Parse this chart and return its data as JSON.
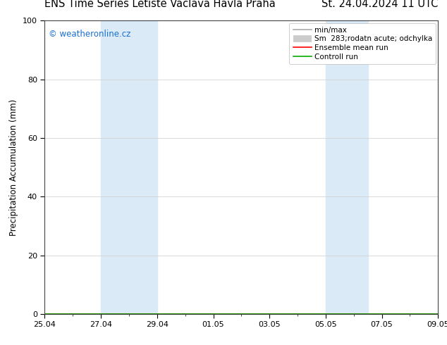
{
  "title_left": "ENS Time Series Letiště Václava Havla Praha",
  "title_right": "St. 24.04.2024 11 UTC",
  "ylabel": "Precipitation Accumulation (mm)",
  "ylim": [
    0,
    100
  ],
  "yticks": [
    0,
    20,
    40,
    60,
    80,
    100
  ],
  "x_start_day": 0,
  "x_end_day": 14,
  "xtick_labels": [
    "25.04",
    "27.04",
    "29.04",
    "01.05",
    "03.05",
    "05.05",
    "07.05",
    "09.05"
  ],
  "xtick_positions_days": [
    0,
    2,
    4,
    6,
    8,
    10,
    12,
    14
  ],
  "shaded_bands": [
    {
      "x_start_day": 2.0,
      "x_end_day": 4.0
    },
    {
      "x_start_day": 10.0,
      "x_end_day": 11.5
    }
  ],
  "shade_color": "#daeaf7",
  "watermark_text": "© weatheronline.cz",
  "watermark_color": "#1a6fcf",
  "legend_entries": [
    {
      "label": "min/max",
      "color": "#aaaaaa",
      "linewidth": 1.2
    },
    {
      "label": "Sm  283;rodatn acute; odchylka",
      "color": "#cccccc",
      "linewidth": 7
    },
    {
      "label": "Ensemble mean run",
      "color": "#ff0000",
      "linewidth": 1.2
    },
    {
      "label": "Controll run",
      "color": "#00aa00",
      "linewidth": 1.2
    }
  ],
  "background_color": "#ffffff",
  "grid_color": "#cccccc",
  "title_fontsize": 10.5,
  "ylabel_fontsize": 8.5,
  "tick_fontsize": 8,
  "watermark_fontsize": 8.5,
  "legend_fontsize": 7.5
}
